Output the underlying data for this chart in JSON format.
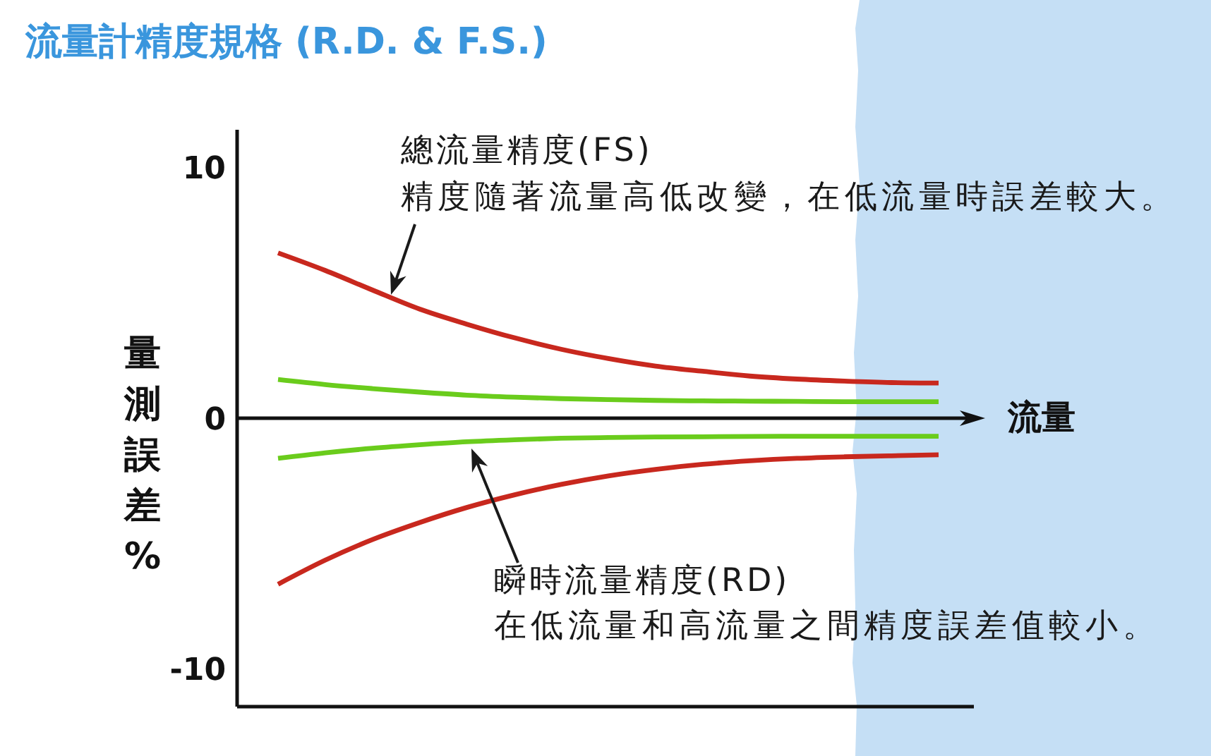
{
  "chart_data": {
    "type": "line",
    "title": "流量計精度規格 (R.D. & F.S.)",
    "xlabel": "流量",
    "ylabel": "量測誤差%",
    "categories": [
      null,
      null,
      null,
      null,
      null,
      null,
      null,
      null,
      null,
      null,
      null,
      null,
      null,
      null,
      null
    ],
    "series": [
      {
        "color": "#c8281e",
        "values": [
          6.59,
          5.89,
          5.11,
          4.35,
          3.75,
          3.21,
          2.75,
          2.38,
          2.08,
          1.87,
          1.68,
          1.56,
          1.48,
          1.42,
          1.4
        ]
      },
      {
        "color": "#6acc1c",
        "values": [
          1.54,
          1.34,
          1.18,
          1.04,
          0.92,
          0.84,
          0.78,
          0.74,
          0.71,
          0.69,
          0.68,
          0.67,
          0.66,
          0.66,
          0.66
        ]
      },
      {
        "color": "#6acc1c",
        "values": [
          -1.6,
          -1.38,
          -1.2,
          -1.06,
          -0.94,
          -0.86,
          -0.8,
          -0.77,
          -0.75,
          -0.74,
          -0.73,
          -0.72,
          -0.72,
          -0.72,
          -0.72
        ]
      },
      {
        "color": "#c8281e",
        "values": [
          -6.62,
          -5.66,
          -4.84,
          -4.16,
          -3.56,
          -3.06,
          -2.64,
          -2.3,
          -2.04,
          -1.84,
          -1.7,
          -1.6,
          -1.54,
          -1.5,
          -1.46
        ]
      }
    ],
    "ylim": [
      -11.5,
      11.5
    ],
    "yticks": [
      -10,
      0,
      10
    ],
    "ref_lines": [
      {
        "axis": "y",
        "value": 0,
        "color": "#111111"
      }
    ],
    "annotations": [
      "總流量精度(FS)",
      "精度隨著流量高低改變，在低流量時誤差較大。",
      "瞬時流量精度(RD)",
      "在低流量和高流量之間精度誤差值較小。"
    ],
    "marker": "none",
    "line_style": "solid"
  }
}
